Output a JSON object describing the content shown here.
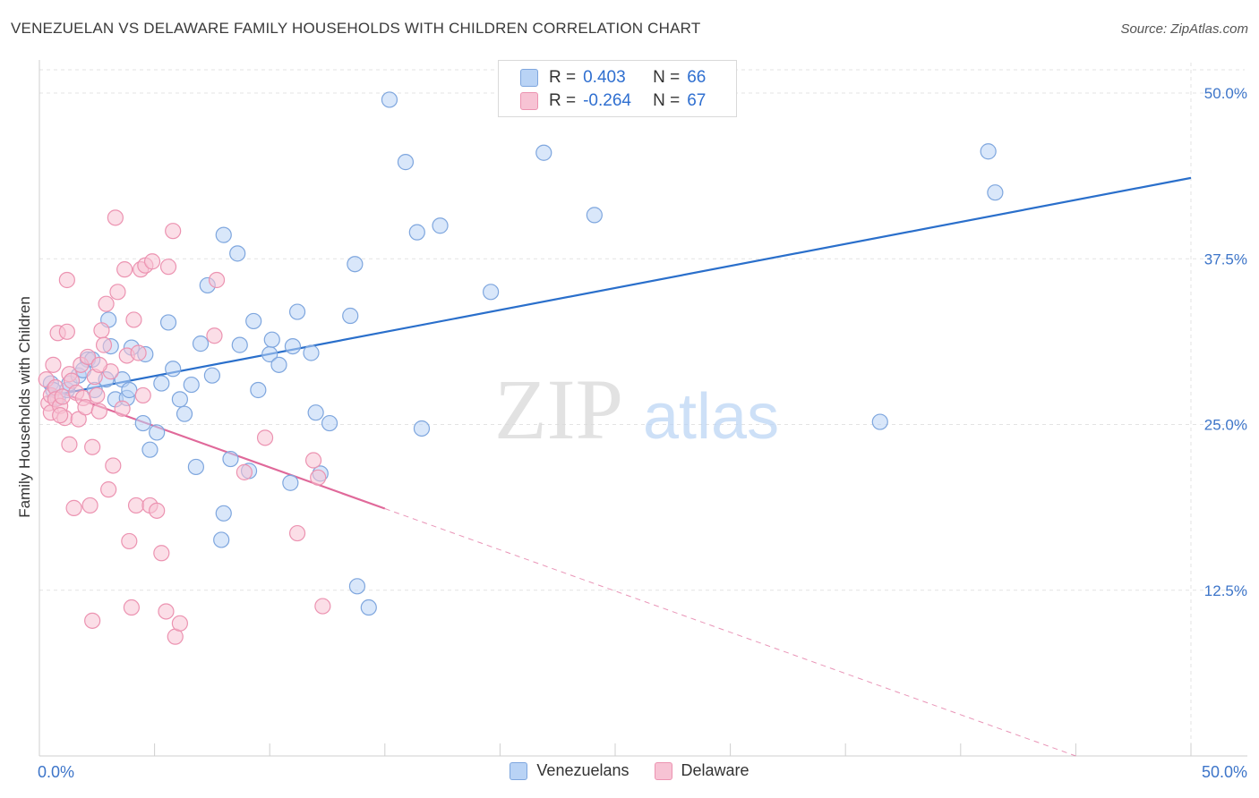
{
  "header": {
    "title": "VENEZUELAN VS DELAWARE FAMILY HOUSEHOLDS WITH CHILDREN CORRELATION CHART",
    "source": "Source: ZipAtlas.com"
  },
  "watermark": {
    "zip": "ZIP",
    "atlas": "atlas"
  },
  "legend": {
    "venezuelans": {
      "r_label": "R =",
      "r_value": "0.403",
      "n_label": "N =",
      "n_value": "66"
    },
    "delaware": {
      "r_label": "R =",
      "r_value": "-0.264",
      "n_label": "N =",
      "n_value": "67"
    }
  },
  "colors": {
    "venezuelans_fill": "#b9d3f5",
    "venezuelans_stroke": "#7ea6de",
    "venezuelans_line": "#2a6fcb",
    "delaware_fill": "#f7c3d4",
    "delaware_stroke": "#ec93b1",
    "delaware_line": "#e0699a",
    "tick_label": "#3d75c9",
    "grid": "#e3e3e3"
  },
  "chart_data": {
    "type": "scatter",
    "title": "VENEZUELAN VS DELAWARE FAMILY HOUSEHOLDS WITH CHILDREN CORRELATION CHART",
    "xlabel": "",
    "ylabel": "Family Households with Children",
    "xlim": [
      0,
      50
    ],
    "ylim": [
      0,
      52.5
    ],
    "x_tick_labels": [
      "0.0%",
      "50.0%"
    ],
    "y_ticks": [
      12.5,
      25.0,
      37.5,
      50.0
    ],
    "y_tick_labels": [
      "12.5%",
      "25.0%",
      "37.5%",
      "50.0%"
    ],
    "grid": true,
    "legend_position": "bottom",
    "series": [
      {
        "name": "Venezuelans",
        "r": 0.403,
        "n": 66,
        "trend": {
          "x": [
            0.3,
            50
          ],
          "y": [
            27.1,
            43.6
          ],
          "dashed_from": null
        },
        "points": [
          [
            0.5,
            28.1
          ],
          [
            0.6,
            27.6
          ],
          [
            0.8,
            27.0
          ],
          [
            1.2,
            27.6
          ],
          [
            1.3,
            28.1
          ],
          [
            1.7,
            28.7
          ],
          [
            2.1,
            29.9
          ],
          [
            2.3,
            29.9
          ],
          [
            2.4,
            27.6
          ],
          [
            2.9,
            28.4
          ],
          [
            3.0,
            32.9
          ],
          [
            3.1,
            30.9
          ],
          [
            3.3,
            26.9
          ],
          [
            3.6,
            28.4
          ],
          [
            3.8,
            27.0
          ],
          [
            3.9,
            27.6
          ],
          [
            4.0,
            30.8
          ],
          [
            4.5,
            25.1
          ],
          [
            4.6,
            30.3
          ],
          [
            4.8,
            23.1
          ],
          [
            5.1,
            24.4
          ],
          [
            5.3,
            28.1
          ],
          [
            5.6,
            32.7
          ],
          [
            5.8,
            29.2
          ],
          [
            6.1,
            26.9
          ],
          [
            6.3,
            25.8
          ],
          [
            6.6,
            28.0
          ],
          [
            6.8,
            21.8
          ],
          [
            7.0,
            31.1
          ],
          [
            7.3,
            35.5
          ],
          [
            7.5,
            28.7
          ],
          [
            8.0,
            39.3
          ],
          [
            7.9,
            16.3
          ],
          [
            8.3,
            22.4
          ],
          [
            8.6,
            37.9
          ],
          [
            8.7,
            31.0
          ],
          [
            8.0,
            18.3
          ],
          [
            9.1,
            21.5
          ],
          [
            9.3,
            32.8
          ],
          [
            9.5,
            27.6
          ],
          [
            10.0,
            30.3
          ],
          [
            10.1,
            31.4
          ],
          [
            10.4,
            29.5
          ],
          [
            10.9,
            20.6
          ],
          [
            11.0,
            30.9
          ],
          [
            11.2,
            33.5
          ],
          [
            11.8,
            30.4
          ],
          [
            12.0,
            25.9
          ],
          [
            12.2,
            21.3
          ],
          [
            12.6,
            25.1
          ],
          [
            13.5,
            33.2
          ],
          [
            13.7,
            37.1
          ],
          [
            13.8,
            12.8
          ],
          [
            14.3,
            11.2
          ],
          [
            15.2,
            49.5
          ],
          [
            15.9,
            44.8
          ],
          [
            16.4,
            39.5
          ],
          [
            16.6,
            24.7
          ],
          [
            17.4,
            40.0
          ],
          [
            19.6,
            35.0
          ],
          [
            21.9,
            45.5
          ],
          [
            24.1,
            40.8
          ],
          [
            36.5,
            25.2
          ],
          [
            41.2,
            45.6
          ],
          [
            41.5,
            42.5
          ],
          [
            1.9,
            29.1
          ]
        ]
      },
      {
        "name": "Delaware",
        "r": -0.264,
        "n": 67,
        "trend": {
          "x": [
            0.3,
            45
          ],
          "y": [
            27.8,
            0
          ],
          "dashed_from": 15
        },
        "points": [
          [
            0.3,
            28.4
          ],
          [
            0.4,
            26.6
          ],
          [
            0.5,
            27.2
          ],
          [
            0.5,
            25.9
          ],
          [
            0.6,
            29.5
          ],
          [
            0.7,
            27.8
          ],
          [
            0.7,
            26.9
          ],
          [
            0.8,
            31.9
          ],
          [
            0.9,
            26.4
          ],
          [
            1.0,
            27.1
          ],
          [
            1.1,
            25.5
          ],
          [
            1.2,
            32.0
          ],
          [
            1.3,
            28.8
          ],
          [
            1.3,
            23.5
          ],
          [
            1.4,
            28.3
          ],
          [
            1.5,
            18.7
          ],
          [
            1.6,
            27.4
          ],
          [
            1.7,
            25.4
          ],
          [
            1.8,
            29.5
          ],
          [
            1.9,
            27.0
          ],
          [
            2.0,
            26.3
          ],
          [
            2.1,
            30.1
          ],
          [
            2.2,
            18.9
          ],
          [
            2.3,
            23.3
          ],
          [
            2.4,
            28.6
          ],
          [
            2.5,
            27.2
          ],
          [
            2.6,
            26.0
          ],
          [
            2.7,
            32.1
          ],
          [
            2.8,
            31.0
          ],
          [
            2.9,
            34.1
          ],
          [
            3.0,
            20.1
          ],
          [
            3.1,
            29.0
          ],
          [
            3.2,
            21.9
          ],
          [
            3.3,
            40.6
          ],
          [
            3.4,
            35.0
          ],
          [
            3.6,
            26.2
          ],
          [
            3.7,
            36.7
          ],
          [
            3.8,
            30.2
          ],
          [
            3.9,
            16.2
          ],
          [
            4.0,
            11.2
          ],
          [
            4.1,
            32.9
          ],
          [
            4.2,
            18.9
          ],
          [
            4.3,
            30.4
          ],
          [
            4.4,
            36.7
          ],
          [
            4.5,
            27.2
          ],
          [
            4.6,
            37.0
          ],
          [
            4.8,
            18.9
          ],
          [
            4.9,
            37.3
          ],
          [
            5.1,
            18.5
          ],
          [
            5.3,
            15.3
          ],
          [
            5.5,
            10.9
          ],
          [
            5.6,
            36.9
          ],
          [
            5.8,
            39.6
          ],
          [
            5.9,
            9.0
          ],
          [
            6.1,
            10.0
          ],
          [
            2.3,
            10.2
          ],
          [
            7.6,
            31.7
          ],
          [
            7.7,
            35.9
          ],
          [
            8.9,
            21.4
          ],
          [
            9.8,
            24.0
          ],
          [
            11.2,
            16.8
          ],
          [
            11.9,
            22.3
          ],
          [
            12.1,
            21.0
          ],
          [
            12.3,
            11.3
          ],
          [
            1.2,
            35.9
          ],
          [
            0.9,
            25.7
          ],
          [
            2.6,
            29.5
          ]
        ]
      }
    ]
  },
  "bottom_legend": [
    "Venezuelans",
    "Delaware"
  ]
}
